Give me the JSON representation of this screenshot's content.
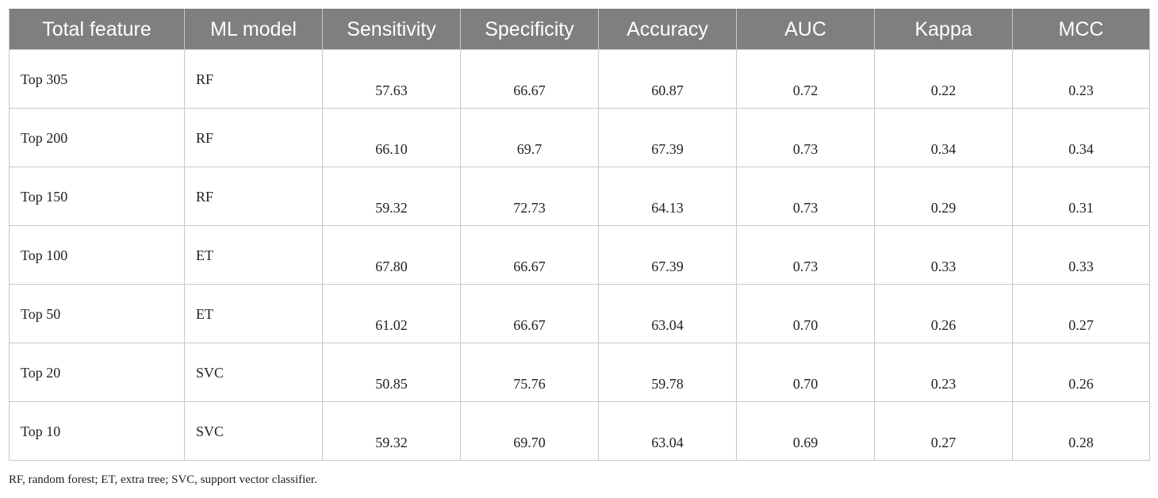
{
  "table": {
    "headers": [
      "Total feature",
      "ML model",
      "Sensitivity",
      "Specificity",
      "Accuracy",
      "AUC",
      "Kappa",
      "MCC"
    ],
    "rows": [
      [
        "Top 305",
        "RF",
        "57.63",
        "66.67",
        "60.87",
        "0.72",
        "0.22",
        "0.23"
      ],
      [
        "Top 200",
        "RF",
        "66.10",
        "69.7",
        "67.39",
        "0.73",
        "0.34",
        "0.34"
      ],
      [
        "Top 150",
        "RF",
        "59.32",
        "72.73",
        "64.13",
        "0.73",
        "0.29",
        "0.31"
      ],
      [
        "Top 100",
        "ET",
        "67.80",
        "66.67",
        "67.39",
        "0.73",
        "0.33",
        "0.33"
      ],
      [
        "Top 50",
        "ET",
        "61.02",
        "66.67",
        "63.04",
        "0.70",
        "0.26",
        "0.27"
      ],
      [
        "Top 20",
        "SVC",
        "50.85",
        "75.76",
        "59.78",
        "0.70",
        "0.23",
        "0.26"
      ],
      [
        "Top 10",
        "SVC",
        "59.32",
        "69.70",
        "63.04",
        "0.69",
        "0.27",
        "0.28"
      ]
    ]
  },
  "footnote": "RF, random forest; ET, extra tree; SVC, support vector classifier."
}
